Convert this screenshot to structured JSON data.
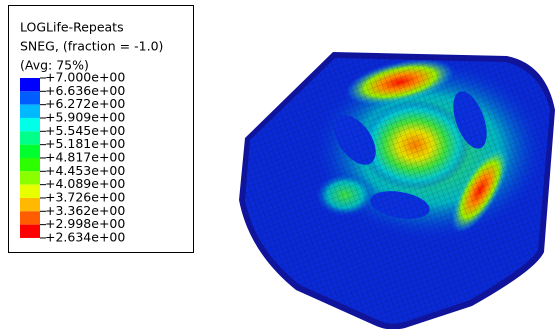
{
  "legend": {
    "title": [
      "LOGLife-Repeats",
      "SNEG, (fraction = -1.0)",
      "(Avg: 75%)"
    ],
    "levels": [
      "+7.000e+00",
      "+6.636e+00",
      "+6.272e+00",
      "+5.909e+00",
      "+5.545e+00",
      "+5.181e+00",
      "+4.817e+00",
      "+4.453e+00",
      "+4.089e+00",
      "+3.726e+00",
      "+3.362e+00",
      "+2.998e+00",
      "+2.634e+00"
    ],
    "colors": [
      "#0000ff",
      "#005dff",
      "#00b9ff",
      "#00ffe8",
      "#00ff8b",
      "#00ff2e",
      "#2eff00",
      "#8bff00",
      "#e8ff00",
      "#ffb900",
      "#ff5d00",
      "#ff0000"
    ]
  }
}
